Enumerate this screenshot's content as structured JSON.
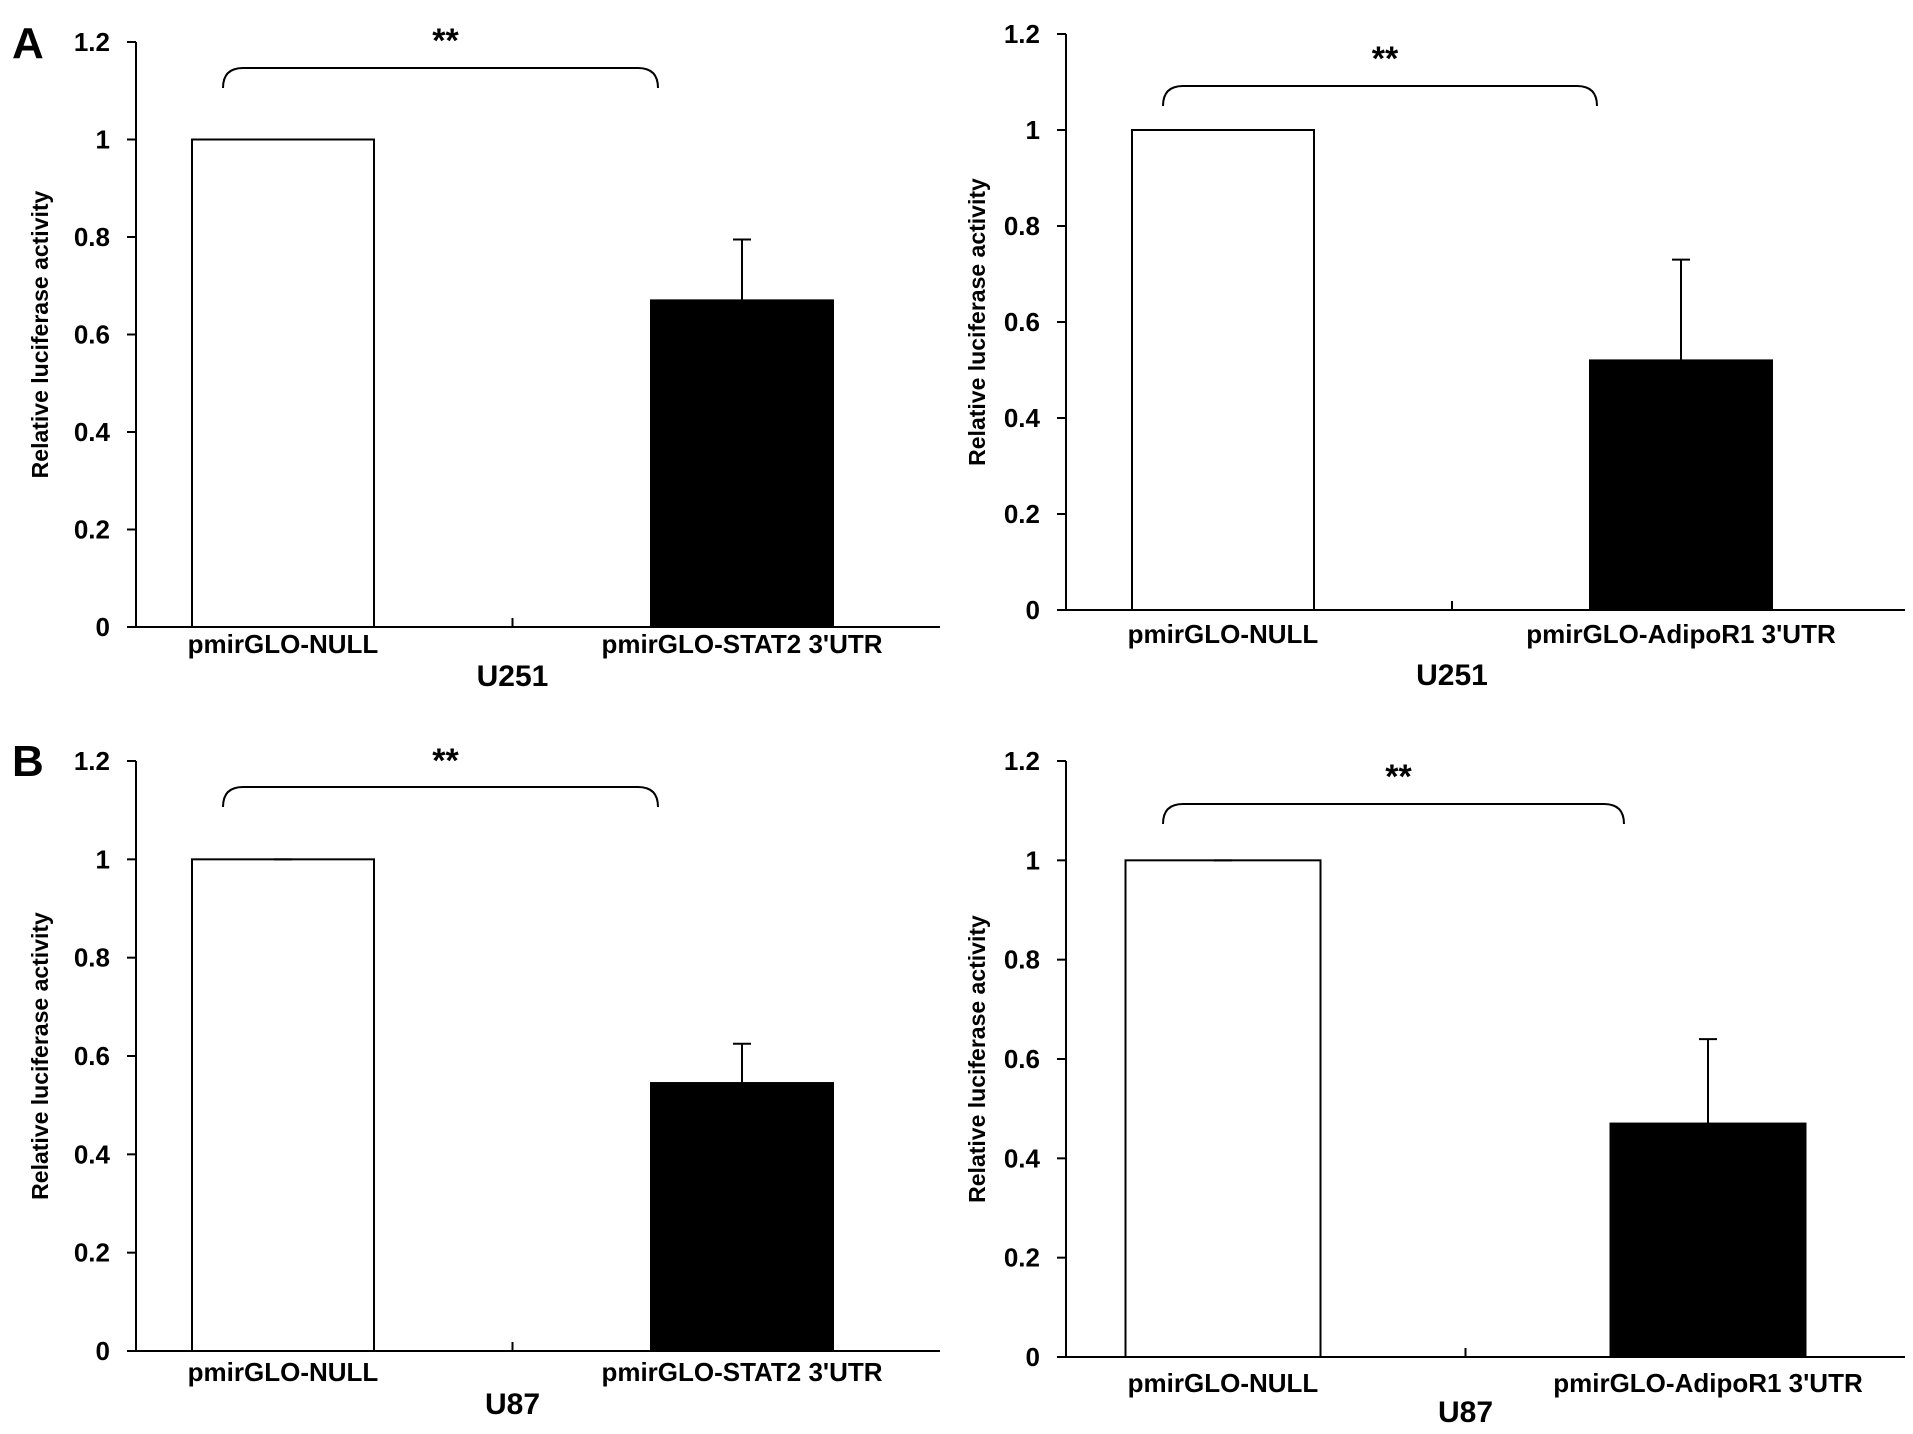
{
  "panel_letters": [
    "A",
    "B"
  ],
  "chart_data": [
    {
      "type": "bar",
      "categories": [
        "pmirGLO-NULL",
        "pmirGLO-STAT2 3'UTR"
      ],
      "values": [
        1.0,
        0.67
      ],
      "error": [
        0,
        0.125
      ],
      "bar_colors": [
        "#ffffff",
        "#000000"
      ],
      "xlabel": "U251",
      "ylabel": "Relative luciferase activity",
      "ylim": [
        0,
        1.2
      ],
      "yticks": [
        "0",
        "0.2",
        "0.4",
        "0.6",
        "0.8",
        "1",
        "1.2"
      ],
      "significance": "**"
    },
    {
      "type": "bar",
      "categories": [
        "pmirGLO-NULL",
        "pmirGLO-AdipoR1 3'UTR"
      ],
      "values": [
        1.0,
        0.52
      ],
      "error": [
        0,
        0.21
      ],
      "bar_colors": [
        "#ffffff",
        "#000000"
      ],
      "xlabel": "U251",
      "ylabel": "Relative luciferase activity",
      "ylim": [
        0,
        1.2
      ],
      "yticks": [
        "0",
        "0.2",
        "0.4",
        "0.6",
        "0.8",
        "1",
        "1.2"
      ],
      "significance": "**"
    },
    {
      "type": "bar",
      "categories": [
        "pmirGLO-NULL",
        "pmirGLO-STAT2 3'UTR"
      ],
      "values": [
        1.0,
        0.545
      ],
      "error": [
        0,
        0.08
      ],
      "bar_colors": [
        "#ffffff",
        "#000000"
      ],
      "xlabel": "U87",
      "ylabel": "Relative luciferase activity",
      "ylim": [
        0,
        1.2
      ],
      "yticks": [
        "0",
        "0.2",
        "0.4",
        "0.6",
        "0.8",
        "1",
        "1.2"
      ],
      "significance": "**"
    },
    {
      "type": "bar",
      "categories": [
        "pmirGLO-NULL",
        "pmirGLO-AdipoR1 3'UTR"
      ],
      "values": [
        1.0,
        0.47
      ],
      "error": [
        0,
        0.17
      ],
      "bar_colors": [
        "#ffffff",
        "#000000"
      ],
      "xlabel": "U87",
      "ylabel": "Relative luciferase activity",
      "ylim": [
        0,
        1.2
      ],
      "yticks": [
        "0",
        "0.2",
        "0.4",
        "0.6",
        "0.8",
        "1",
        "1.2"
      ],
      "significance": "**"
    }
  ]
}
